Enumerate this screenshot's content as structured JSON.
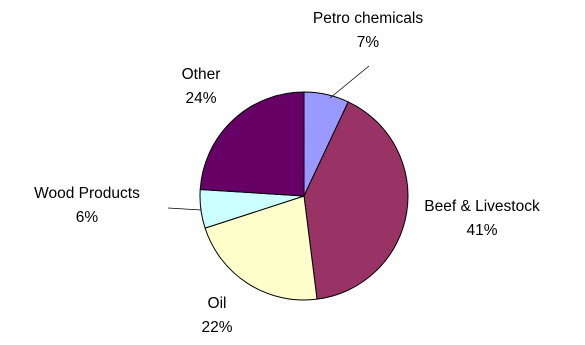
{
  "chart_data": {
    "type": "pie",
    "title": "",
    "slices": [
      {
        "label": "Petro chemicals",
        "value": 7,
        "percent_label": "7%",
        "color": "#9999ff"
      },
      {
        "label": "Beef & Livestock",
        "value": 41,
        "percent_label": "41%",
        "color": "#993366"
      },
      {
        "label": "Oil",
        "value": 22,
        "percent_label": "22%",
        "color": "#ffffcc"
      },
      {
        "label": "Wood Products",
        "value": 6,
        "percent_label": "6%",
        "color": "#ccffff"
      },
      {
        "label": "Other",
        "value": 24,
        "percent_label": "24%",
        "color": "#660066"
      }
    ],
    "start_angle_deg": 0,
    "direction": "clockwise",
    "legend": "none"
  }
}
